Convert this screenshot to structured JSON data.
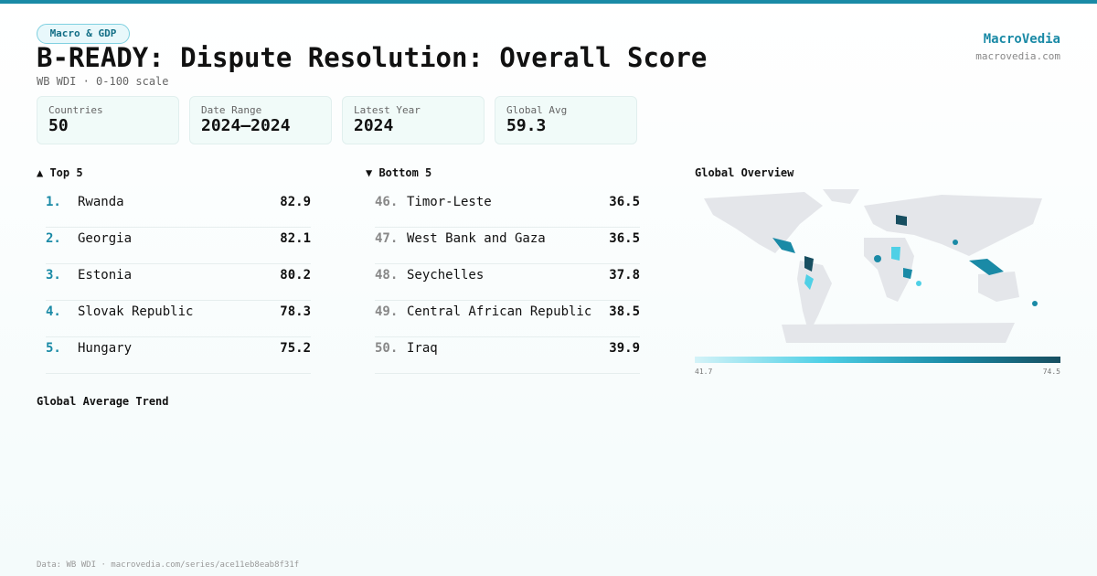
{
  "header": {
    "badge": "Macro & GDP",
    "title": "B-READY: Dispute Resolution: Overall Score",
    "subtitle": "WB WDI · 0-100 scale",
    "brand": "MacroVedia",
    "url": "macrovedia.com"
  },
  "stats": [
    {
      "label": "Countries",
      "value": 50
    },
    {
      "label": "Date Range",
      "value": "2024–2024"
    },
    {
      "label": "Latest Year",
      "value": 2024
    },
    {
      "label": "Global Avg",
      "value": 59.3
    }
  ],
  "top": {
    "title": "▲ Top 5",
    "rows": [
      {
        "rank": "1.",
        "name": "Rwanda",
        "value": 82.9
      },
      {
        "rank": "2.",
        "name": "Georgia",
        "value": 82.1
      },
      {
        "rank": "3.",
        "name": "Estonia",
        "value": 80.2
      },
      {
        "rank": "4.",
        "name": "Slovak Republic",
        "value": 78.3
      },
      {
        "rank": "5.",
        "name": "Hungary",
        "value": 75.2
      }
    ]
  },
  "bottom": {
    "title": "▼ Bottom 5",
    "rows": [
      {
        "rank": "46.",
        "name": "Timor-Leste",
        "value": 36.5
      },
      {
        "rank": "47.",
        "name": "West Bank and Gaza",
        "value": 36.5
      },
      {
        "rank": "48.",
        "name": "Seychelles",
        "value": 37.8
      },
      {
        "rank": "49.",
        "name": "Central African Republic",
        "value": 38.5
      },
      {
        "rank": "50.",
        "name": "Iraq",
        "value": 39.9
      }
    ]
  },
  "map": {
    "title": "Global Overview",
    "legend_min": "41.7",
    "legend_max": "74.5"
  },
  "trend": {
    "title": "Global Average Trend"
  },
  "footer": "Data: WB WDI · macrovedia.com/series/ace11eb8eab8f31f"
}
